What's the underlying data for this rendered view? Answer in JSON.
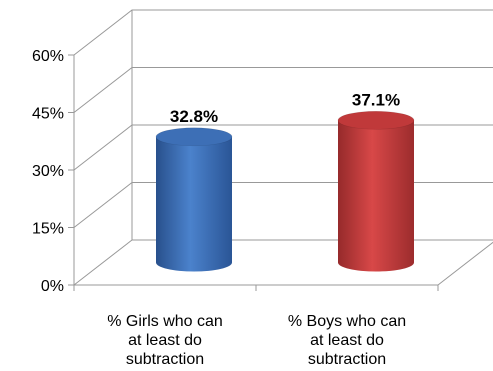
{
  "chart_data": {
    "type": "bar",
    "style": "3d-cylinder",
    "categories": [
      [
        "% Girls who can",
        "at least do",
        "subtraction"
      ],
      [
        "% Boys who can",
        "at least do",
        "subtraction"
      ]
    ],
    "values": [
      32.8,
      37.1
    ],
    "data_labels": [
      "32.8%",
      "37.1%"
    ],
    "colors": [
      "#3d6fb6",
      "#c0393a"
    ],
    "yticks": [
      "0%",
      "15%",
      "30%",
      "45%",
      "60%"
    ],
    "ylim": [
      0,
      60
    ],
    "grid": true,
    "legend": "none"
  }
}
